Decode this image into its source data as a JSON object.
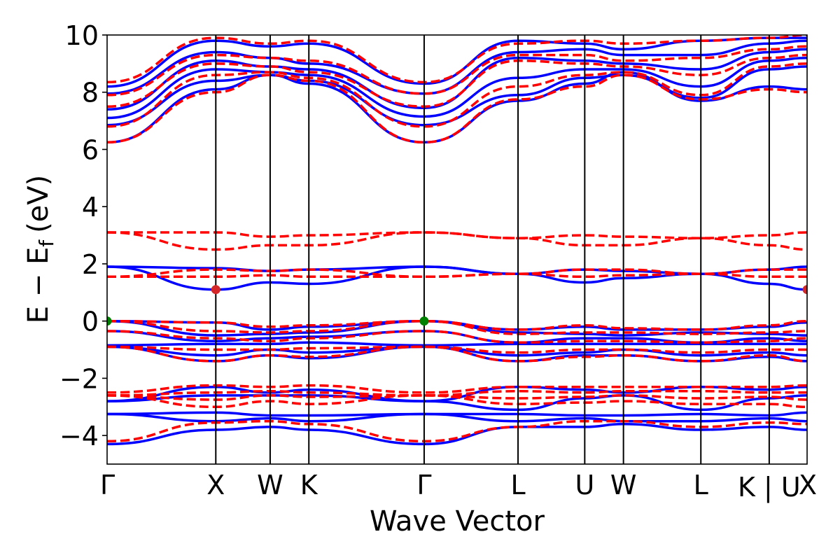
{
  "chart_data": {
    "type": "line",
    "title": "",
    "xlabel": "Wave Vector",
    "ylabel": "E − E",
    "ylabel_subscript": "f",
    "ylabel_unit": "(eV)",
    "xlim": [
      0,
      8.5
    ],
    "ylim": [
      -5,
      10
    ],
    "yticks": [
      -4,
      -2,
      0,
      2,
      4,
      6,
      8,
      10
    ],
    "ytick_labels": [
      "−4",
      "−2",
      "0",
      "2",
      "4",
      "6",
      "8",
      "10"
    ],
    "kpoints": [
      {
        "label": "Γ",
        "x": 0
      },
      {
        "label": "X",
        "x": 1.32
      },
      {
        "label": "W",
        "x": 1.98
      },
      {
        "label": "K",
        "x": 2.45
      },
      {
        "label": "Γ",
        "x": 3.85
      },
      {
        "label": "L",
        "x": 4.99
      },
      {
        "label": "U",
        "x": 5.8
      },
      {
        "label": "W",
        "x": 6.27
      },
      {
        "label": "L",
        "x": 7.21
      },
      {
        "label": "K | U",
        "x": 8.04
      },
      {
        "label": "X",
        "x": 8.5
      }
    ],
    "grid": false,
    "legend": "none",
    "colors": {
      "spin_up": "#0000ff",
      "spin_down": "#ff0000",
      "vbm_marker": "#008000",
      "cbm_marker": "#d62728",
      "kpoint_line": "#000000"
    },
    "series": [
      {
        "style": "spin-up",
        "y": [
          8.2,
          9.8,
          9.6,
          9.7,
          8.3,
          9.8,
          9.7,
          9.5,
          9.8,
          9.9,
          9.9
        ]
      },
      {
        "style": "spin-up",
        "y": [
          7.95,
          9.4,
          9.2,
          9.0,
          7.95,
          9.4,
          9.5,
          9.3,
          9.3,
          9.7,
          9.8
        ]
      },
      {
        "style": "spin-up",
        "y": [
          7.4,
          9.1,
          8.9,
          8.8,
          7.45,
          9.2,
          9.1,
          9.0,
          8.8,
          9.4,
          9.5
        ]
      },
      {
        "style": "spin-up",
        "y": [
          7.1,
          8.8,
          8.7,
          8.6,
          7.15,
          8.5,
          8.8,
          8.8,
          8.2,
          9.1,
          9.2
        ]
      },
      {
        "style": "spin-up",
        "y": [
          6.85,
          8.4,
          8.6,
          8.4,
          6.85,
          7.9,
          8.5,
          8.6,
          7.8,
          8.8,
          8.9
        ]
      },
      {
        "style": "spin-up",
        "y": [
          6.25,
          8.1,
          8.6,
          8.3,
          6.25,
          7.7,
          8.3,
          8.7,
          7.7,
          8.2,
          8.1
        ]
      },
      {
        "style": "spin-up",
        "y": [
          1.9,
          1.85,
          1.75,
          1.8,
          1.9,
          1.65,
          1.8,
          1.75,
          1.65,
          1.8,
          1.9
        ]
      },
      {
        "style": "spin-up",
        "y": [
          1.9,
          1.1,
          1.35,
          1.3,
          1.9,
          1.65,
          1.35,
          1.5,
          1.65,
          1.3,
          1.1
        ]
      },
      {
        "style": "spin-up",
        "y": [
          0.0,
          -0.05,
          -0.3,
          -0.2,
          0.0,
          -0.3,
          -0.2,
          -0.3,
          -0.3,
          -0.2,
          -0.05
        ]
      },
      {
        "style": "spin-up",
        "y": [
          0.0,
          -0.5,
          -0.45,
          -0.4,
          0.0,
          -0.4,
          -0.45,
          -0.5,
          -0.4,
          -0.45,
          -0.5
        ]
      },
      {
        "style": "spin-up",
        "y": [
          -0.35,
          -0.7,
          -0.6,
          -0.55,
          -0.35,
          -0.75,
          -0.6,
          -0.6,
          -0.75,
          -0.6,
          -0.7
        ]
      },
      {
        "style": "spin-up",
        "y": [
          -0.85,
          -0.8,
          -0.8,
          -0.75,
          -0.85,
          -0.8,
          -0.8,
          -0.8,
          -0.8,
          -0.8,
          -0.8
        ]
      },
      {
        "style": "spin-up",
        "y": [
          -0.9,
          -1.2,
          -1.0,
          -1.1,
          -0.9,
          -1.2,
          -1.1,
          -1.0,
          -1.2,
          -1.1,
          -1.2
        ]
      },
      {
        "style": "spin-up",
        "y": [
          -0.9,
          -1.4,
          -1.2,
          -1.3,
          -0.9,
          -1.4,
          -1.2,
          -1.2,
          -1.4,
          -1.25,
          -1.4
        ]
      },
      {
        "style": "spin-up",
        "y": [
          -2.8,
          -2.3,
          -2.5,
          -2.4,
          -2.8,
          -2.3,
          -2.4,
          -2.5,
          -2.3,
          -2.4,
          -2.3
        ]
      },
      {
        "style": "spin-up",
        "y": [
          -2.8,
          -2.6,
          -2.6,
          -2.6,
          -2.8,
          -3.1,
          -2.7,
          -2.6,
          -3.1,
          -2.7,
          -2.6
        ]
      },
      {
        "style": "spin-up",
        "y": [
          -3.25,
          -3.2,
          -3.3,
          -3.3,
          -3.25,
          -3.25,
          -3.3,
          -3.3,
          -3.25,
          -3.3,
          -3.2
        ]
      },
      {
        "style": "spin-up",
        "y": [
          -3.25,
          -3.5,
          -3.4,
          -3.5,
          -3.25,
          -3.5,
          -3.4,
          -3.5,
          -3.5,
          -3.4,
          -3.5
        ]
      },
      {
        "style": "spin-up",
        "y": [
          -4.3,
          -3.8,
          -3.7,
          -3.8,
          -4.3,
          -3.7,
          -3.7,
          -3.6,
          -3.8,
          -3.7,
          -3.8
        ]
      },
      {
        "style": "spin-down",
        "y": [
          8.35,
          9.9,
          9.7,
          9.8,
          8.35,
          9.7,
          9.8,
          9.7,
          9.8,
          9.9,
          10.0
        ]
      },
      {
        "style": "spin-down",
        "y": [
          7.9,
          9.3,
          9.2,
          9.1,
          7.95,
          9.3,
          9.3,
          9.1,
          9.2,
          9.5,
          9.6
        ]
      },
      {
        "style": "spin-down",
        "y": [
          7.5,
          9.0,
          8.9,
          8.7,
          7.5,
          9.1,
          9.0,
          8.9,
          8.6,
          9.2,
          9.3
        ]
      },
      {
        "style": "spin-down",
        "y": [
          6.8,
          8.6,
          8.7,
          8.5,
          6.8,
          8.2,
          8.6,
          8.7,
          7.9,
          8.9,
          9.0
        ]
      },
      {
        "style": "spin-down",
        "y": [
          6.25,
          8.0,
          8.6,
          8.4,
          6.25,
          7.75,
          8.2,
          8.6,
          7.75,
          8.1,
          8.0
        ]
      },
      {
        "style": "spin-down",
        "y": [
          3.1,
          3.1,
          2.95,
          3.0,
          3.1,
          2.9,
          3.0,
          2.95,
          2.9,
          3.0,
          3.1
        ]
      },
      {
        "style": "spin-down",
        "y": [
          3.1,
          2.5,
          2.65,
          2.65,
          3.1,
          2.9,
          2.65,
          2.65,
          2.9,
          2.65,
          2.5
        ]
      },
      {
        "style": "spin-down",
        "y": [
          1.55,
          1.8,
          1.75,
          1.8,
          1.55,
          1.65,
          1.8,
          1.8,
          1.65,
          1.8,
          1.8
        ]
      },
      {
        "style": "spin-down",
        "y": [
          1.55,
          1.55,
          1.6,
          1.55,
          1.55,
          1.65,
          1.55,
          1.6,
          1.65,
          1.55,
          1.55
        ]
      },
      {
        "style": "spin-down",
        "y": [
          0.0,
          -0.05,
          -0.2,
          -0.15,
          0.0,
          -0.3,
          -0.15,
          -0.25,
          -0.3,
          -0.15,
          0.0
        ]
      },
      {
        "style": "spin-down",
        "y": [
          0.0,
          -0.35,
          -0.4,
          -0.35,
          0.0,
          -0.45,
          -0.4,
          -0.4,
          -0.45,
          -0.4,
          -0.35
        ]
      },
      {
        "style": "spin-down",
        "y": [
          -0.35,
          -0.6,
          -0.7,
          -0.6,
          -0.35,
          -0.75,
          -0.7,
          -0.7,
          -0.75,
          -0.7,
          -0.6
        ]
      },
      {
        "style": "spin-down",
        "y": [
          -0.9,
          -1.0,
          -1.0,
          -0.95,
          -0.9,
          -1.1,
          -1.0,
          -1.0,
          -1.1,
          -1.0,
          -1.0
        ]
      },
      {
        "style": "spin-down",
        "y": [
          -0.9,
          -1.4,
          -1.2,
          -1.25,
          -0.9,
          -1.4,
          -1.25,
          -1.2,
          -1.4,
          -1.2,
          -1.4
        ]
      },
      {
        "style": "spin-down",
        "y": [
          -2.5,
          -2.25,
          -2.3,
          -2.25,
          -2.5,
          -2.3,
          -2.3,
          -2.3,
          -2.3,
          -2.3,
          -2.25
        ]
      },
      {
        "style": "spin-down",
        "y": [
          -2.6,
          -2.5,
          -2.45,
          -2.5,
          -2.6,
          -2.45,
          -2.5,
          -2.45,
          -2.45,
          -2.5,
          -2.5
        ]
      },
      {
        "style": "spin-down",
        "y": [
          -2.6,
          -2.75,
          -2.6,
          -2.65,
          -2.6,
          -2.7,
          -2.65,
          -2.6,
          -2.7,
          -2.65,
          -2.75
        ]
      },
      {
        "style": "spin-down",
        "y": [
          -2.6,
          -3.0,
          -2.8,
          -2.9,
          -2.6,
          -2.9,
          -2.85,
          -2.8,
          -2.9,
          -2.9,
          -3.0
        ]
      },
      {
        "style": "spin-down",
        "y": [
          -4.2,
          -3.55,
          -3.5,
          -3.6,
          -4.2,
          -3.7,
          -3.5,
          -3.5,
          -3.7,
          -3.55,
          -3.6
        ]
      }
    ],
    "markers": [
      {
        "type": "vbm",
        "x": 0,
        "y": 0.0
      },
      {
        "type": "vbm",
        "x": 3.85,
        "y": 0.0
      },
      {
        "type": "cbm",
        "x": 1.32,
        "y": 1.1
      },
      {
        "type": "cbm",
        "x": 8.5,
        "y": 1.1
      }
    ]
  }
}
